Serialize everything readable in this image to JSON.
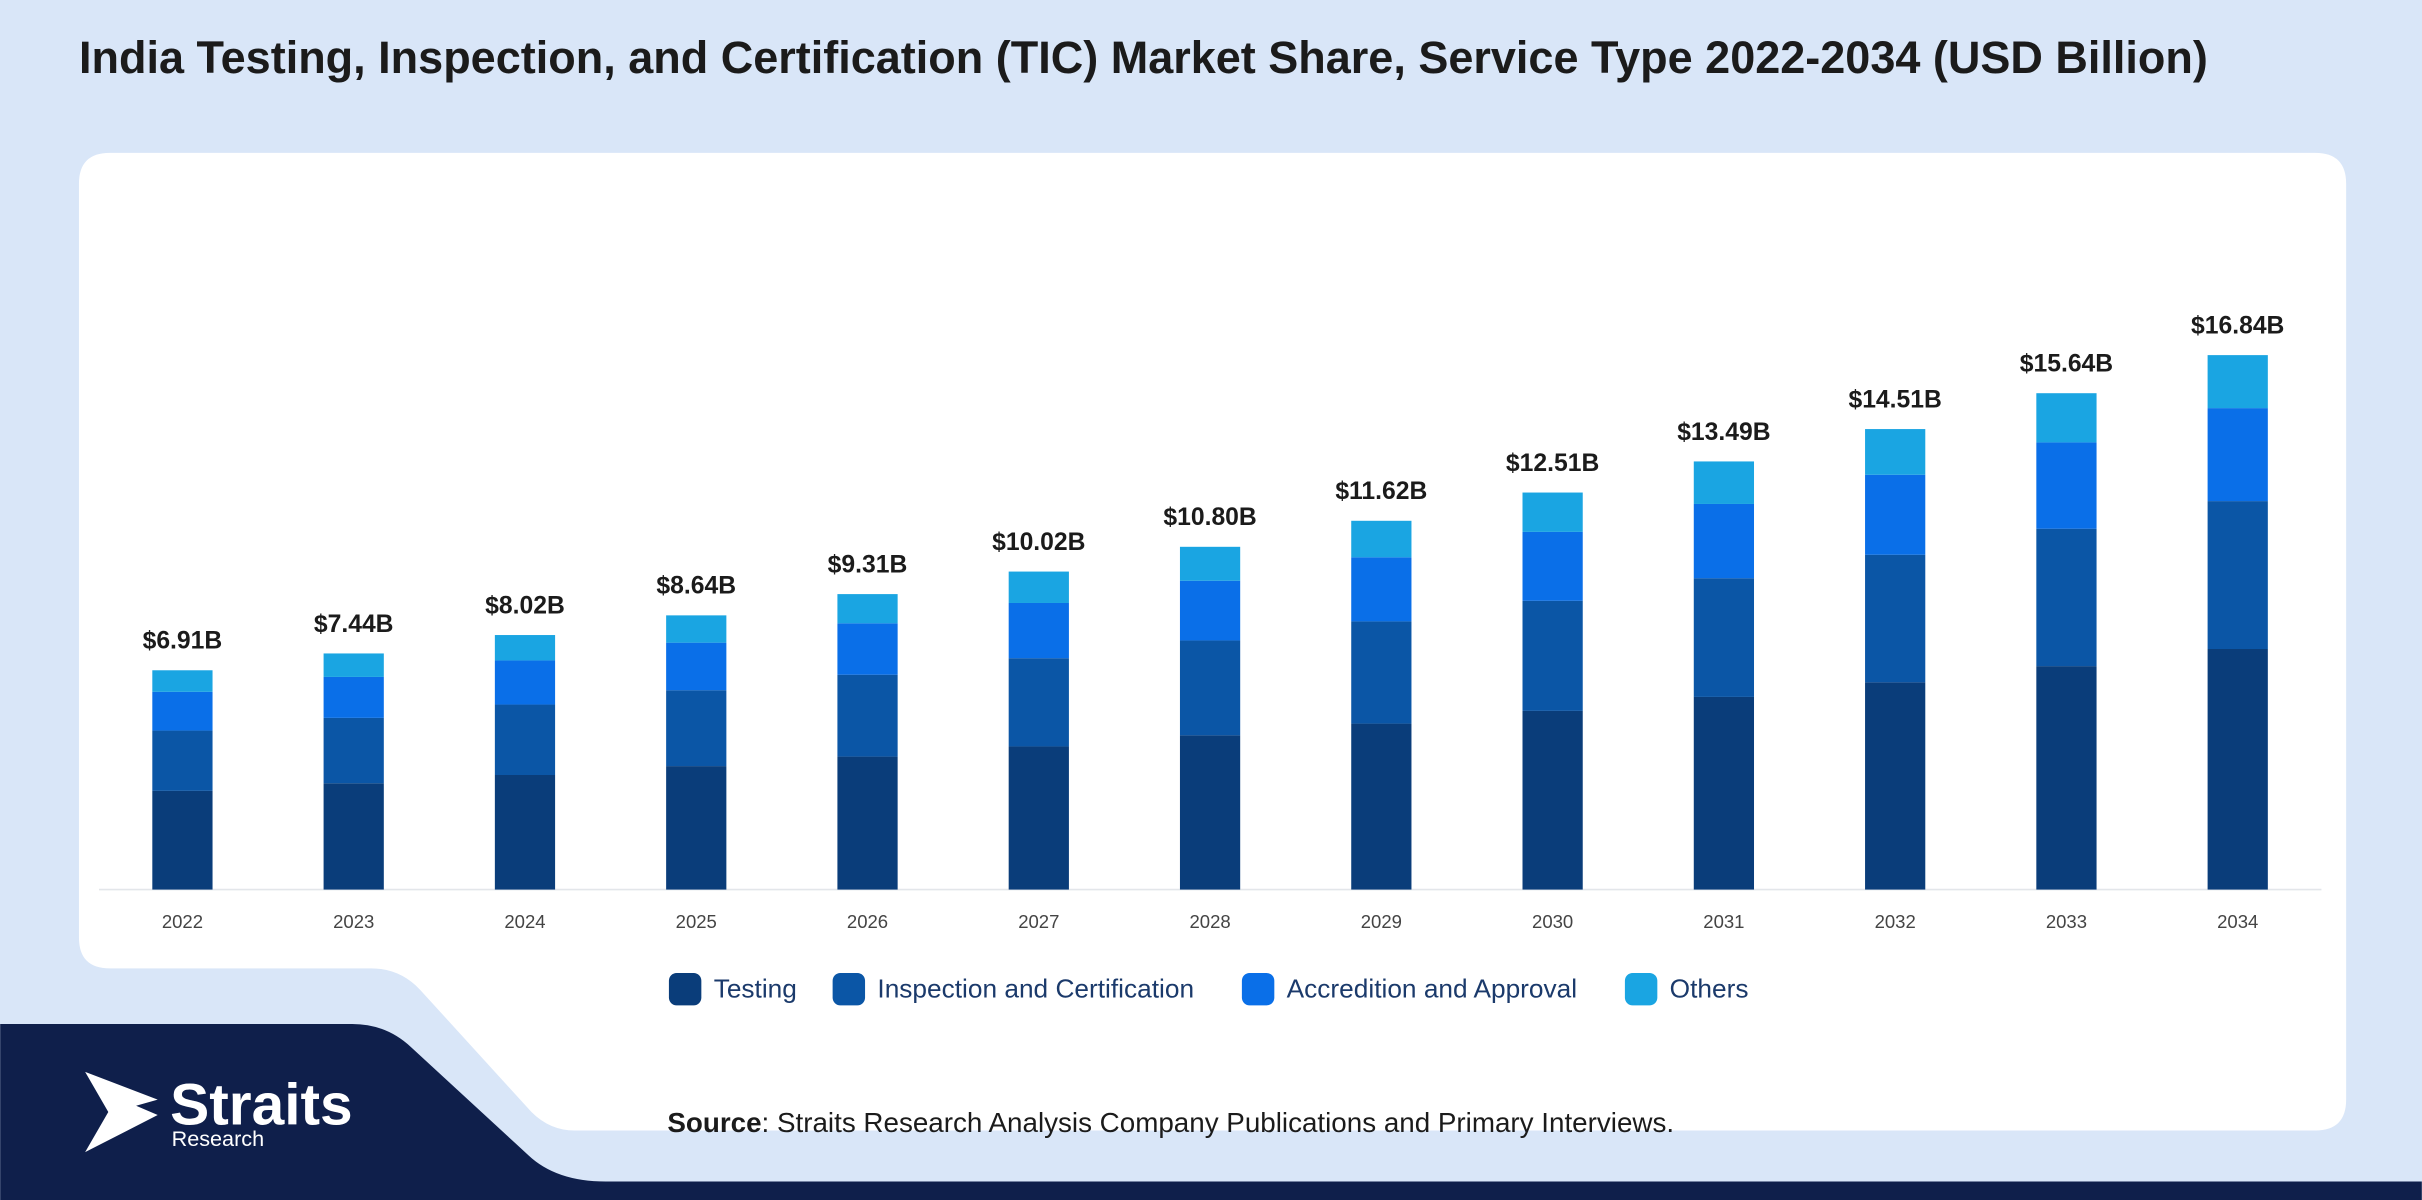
{
  "chart_data": {
    "type": "stacked_bar",
    "title": "India Testing, Inspection, and Certification (TIC) Market Share, Service Type 2022-2034 (USD Billion)",
    "categories": [
      "2022",
      "2023",
      "2024",
      "2025",
      "2026",
      "2027",
      "2028",
      "2029",
      "2030",
      "2031",
      "2032",
      "2033",
      "2034"
    ],
    "series": [
      {
        "name": "Testing",
        "color": "#0a3d7a",
        "values": [
          3.11,
          3.35,
          3.61,
          3.89,
          4.19,
          4.51,
          4.86,
          5.23,
          5.63,
          6.07,
          6.53,
          7.04,
          7.58
        ]
      },
      {
        "name": "Inspection and Certification",
        "color": "#0b56a6",
        "values": [
          1.9,
          2.06,
          2.22,
          2.39,
          2.58,
          2.78,
          2.99,
          3.22,
          3.47,
          3.74,
          4.02,
          4.33,
          4.66
        ]
      },
      {
        "name": "Accredition and Approval",
        "color": "#0a6fe8",
        "values": [
          1.22,
          1.29,
          1.39,
          1.5,
          1.62,
          1.74,
          1.88,
          2.02,
          2.17,
          2.34,
          2.52,
          2.72,
          2.93
        ]
      },
      {
        "name": "Others",
        "color": "#1aa5e2",
        "values": [
          0.68,
          0.74,
          0.8,
          0.86,
          0.92,
          0.99,
          1.07,
          1.15,
          1.24,
          1.34,
          1.44,
          1.55,
          1.67
        ]
      }
    ],
    "totals": {
      "values": [
        6.91,
        7.44,
        8.02,
        8.64,
        9.31,
        10.02,
        10.8,
        11.62,
        12.51,
        13.49,
        14.51,
        15.64,
        16.84
      ],
      "value_labels": [
        "$6.91B",
        "$7.44B",
        "$8.02B",
        "$8.64B",
        "$9.31B",
        "$10.02B",
        "$10.80B",
        "$11.62B",
        "$12.51B",
        "$13.49B",
        "$14.51B",
        "$15.64B",
        "$16.84B"
      ]
    },
    "legend": "bottom"
  },
  "source": {
    "label": "Source",
    "text": ": Straits Research Analysis Company Publications and Primary Interviews."
  },
  "logo": {
    "name": "Straits",
    "sub": "Research"
  }
}
